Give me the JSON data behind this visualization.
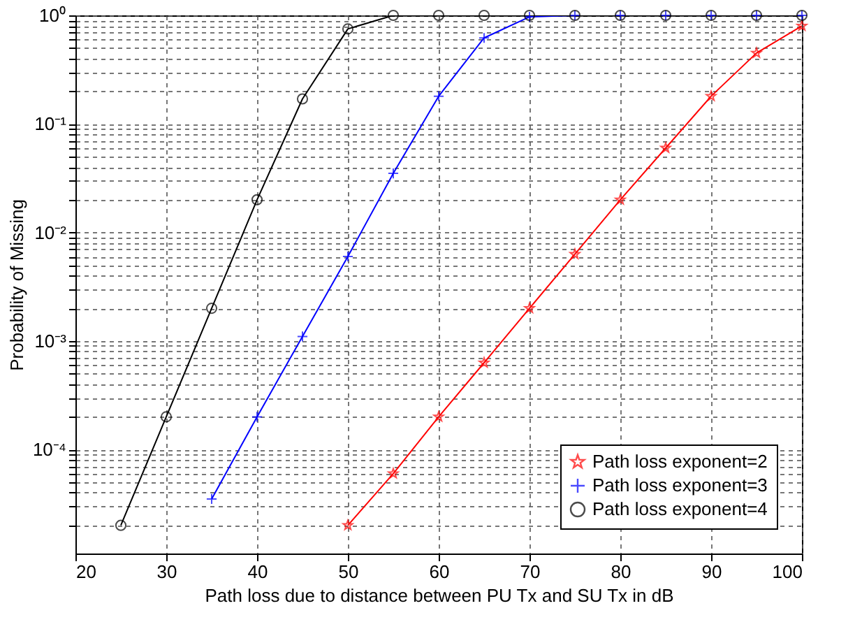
{
  "chart_data": {
    "type": "line",
    "xlabel": "Path loss due to distance between PU Tx and SU Tx in dB",
    "ylabel": "Probability of Missing",
    "log": "y",
    "grid": true,
    "line_style": "solid",
    "legend": "bottom right",
    "xlim": [
      20,
      100
    ],
    "xticks": [
      20,
      30,
      40,
      50,
      60,
      70,
      80,
      90,
      100
    ],
    "ylim": [
      1.1e-05,
      1
    ],
    "yticks": [
      {
        "value": 2e-05,
        "label": null
      },
      {
        "value": 3e-05,
        "label": null
      },
      {
        "value": 4e-05,
        "label": null
      },
      {
        "value": 5e-05,
        "label": null
      },
      {
        "value": 6e-05,
        "label": null
      },
      {
        "value": 7e-05,
        "label": null
      },
      {
        "value": 8e-05,
        "label": null
      },
      {
        "value": 9e-05,
        "label": null
      },
      {
        "value": 0.0001,
        "label": "10⁻⁴"
      },
      {
        "value": 0.0002,
        "label": null
      },
      {
        "value": 0.0003,
        "label": null
      },
      {
        "value": 0.0004,
        "label": null
      },
      {
        "value": 0.0005,
        "label": null
      },
      {
        "value": 0.0006,
        "label": null
      },
      {
        "value": 0.0007,
        "label": null
      },
      {
        "value": 0.0008,
        "label": null
      },
      {
        "value": 0.0009,
        "label": null
      },
      {
        "value": 0.001,
        "label": "10⁻³"
      },
      {
        "value": 0.002,
        "label": null
      },
      {
        "value": 0.003,
        "label": null
      },
      {
        "value": 0.004,
        "label": null
      },
      {
        "value": 0.005,
        "label": null
      },
      {
        "value": 0.006,
        "label": null
      },
      {
        "value": 0.007,
        "label": null
      },
      {
        "value": 0.008,
        "label": null
      },
      {
        "value": 0.009,
        "label": null
      },
      {
        "value": 0.01,
        "label": "10⁻²"
      },
      {
        "value": 0.02,
        "label": null
      },
      {
        "value": 0.03,
        "label": null
      },
      {
        "value": 0.04,
        "label": null
      },
      {
        "value": 0.05,
        "label": null
      },
      {
        "value": 0.06,
        "label": null
      },
      {
        "value": 0.07,
        "label": null
      },
      {
        "value": 0.08,
        "label": null
      },
      {
        "value": 0.09,
        "label": null
      },
      {
        "value": 0.1,
        "label": "10⁻¹"
      },
      {
        "value": 0.2,
        "label": null
      },
      {
        "value": 0.3,
        "label": null
      },
      {
        "value": 0.4,
        "label": null
      },
      {
        "value": 0.5,
        "label": null
      },
      {
        "value": 0.6,
        "label": null
      },
      {
        "value": 0.7,
        "label": null
      },
      {
        "value": 0.8,
        "label": null
      },
      {
        "value": 0.9,
        "label": null
      },
      {
        "value": 1,
        "label": "10⁰"
      }
    ],
    "series": [
      {
        "name": "Path loss exponent=2",
        "color": "#ff0000",
        "marker": "star",
        "x": [
          50,
          55,
          60,
          65,
          70,
          75,
          80,
          85,
          90,
          95,
          100
        ],
        "values": [
          2e-05,
          6e-05,
          0.0002,
          0.00063,
          0.002,
          0.0063,
          0.02,
          0.06,
          0.18,
          0.45,
          0.8
        ]
      },
      {
        "name": "Path loss exponent=3",
        "color": "#0000ff",
        "marker": "cross",
        "x": [
          35,
          40,
          45,
          50,
          55,
          60,
          65,
          70,
          75,
          80,
          85,
          90,
          95,
          100
        ],
        "values": [
          3.5e-05,
          0.0002,
          0.0011,
          0.006,
          0.035,
          0.18,
          0.62,
          0.97,
          1,
          1,
          1,
          1,
          1,
          1
        ]
      },
      {
        "name": "Path loss exponent=4",
        "color": "#000000",
        "marker": "circle",
        "x": [
          25,
          30,
          35,
          40,
          45,
          50,
          55,
          60,
          65,
          70,
          75,
          80,
          85,
          90,
          95,
          100
        ],
        "values": [
          2e-05,
          0.0002,
          0.002,
          0.02,
          0.17,
          0.75,
          1,
          1,
          1,
          1,
          1,
          1,
          1,
          1,
          1,
          1
        ]
      }
    ]
  }
}
